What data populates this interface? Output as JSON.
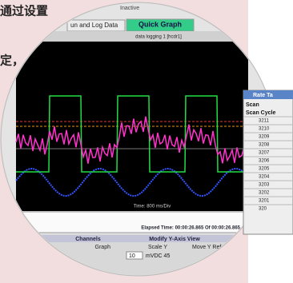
{
  "page_text": {
    "lines": [
      "通过设置",
      "定，"
    ]
  },
  "window": {
    "status": "Inactive",
    "tabs": [
      "un and Log Data",
      "Quick Graph"
    ],
    "graph_title": "data logging 1 [hcdr1]",
    "time_div": "Time: 800 ms/Div",
    "elapsed": "Elapsed Time: 00:00:26.865 Of 00:00:26.865"
  },
  "controls": {
    "channels": "Channels",
    "graph": "Graph",
    "modify": "Modify Y-Axis View",
    "scale": "Scale Y",
    "move": "Move Y Ref",
    "scale_value": "10",
    "unit_value": "mVDC 45"
  },
  "rate_table": {
    "title": "Rate Ta",
    "header1": "Scan",
    "header2": "Scan Cycle",
    "rows": [
      "3211",
      "3210",
      "3209",
      "3208",
      "3207",
      "3206",
      "3205",
      "3204",
      "3203",
      "3202",
      "3201",
      "320"
    ]
  }
}
